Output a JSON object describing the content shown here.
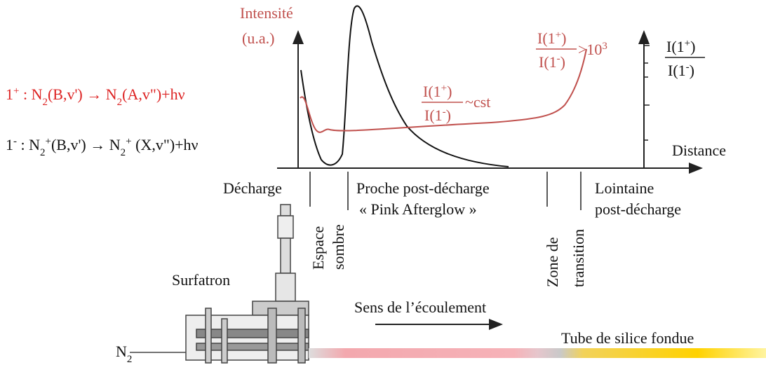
{
  "axis": {
    "y_label": [
      "Intensité",
      "(u.a.)"
    ],
    "x_label": "Distance",
    "right_label": {
      "numerator": [
        "I(1",
        "+",
        ")"
      ],
      "denominator": [
        "I(1",
        "-",
        ")"
      ]
    }
  },
  "reactions": [
    [
      "1",
      "+",
      " : N",
      "2",
      "(B,v') → N",
      "2",
      "(A,v\")+hν"
    ],
    [
      "1",
      "-",
      " : N",
      "2",
      "+",
      "(B,v') → N",
      "2",
      "+",
      " (X,v\")+hν"
    ]
  ],
  "annotations": {
    "constant": {
      "numerator": [
        "I(1",
        "+",
        ")"
      ],
      "denominator": [
        "I(1",
        "-",
        ")"
      ],
      "relation": "~cst"
    },
    "high": {
      "numerator": [
        "I(1",
        "+",
        ")"
      ],
      "denominator": [
        "I(1",
        "-",
        ")"
      ],
      "relation": [
        ">10",
        "3"
      ]
    }
  },
  "regions": {
    "discharge": "Décharge",
    "dark_space": [
      "Espace",
      "sombre"
    ],
    "near_afterglow": [
      "Proche post-décharge",
      "« Pink Afterglow »"
    ],
    "transition": [
      "Zone de",
      "transition"
    ],
    "far_afterglow": [
      "Lointaine",
      "post-décharge"
    ]
  },
  "device": {
    "surfatron": "Surfatron",
    "flow": "Sens de l’écoulement",
    "tube": "Tube de silice fondue",
    "gas": [
      "N",
      "2"
    ]
  }
}
